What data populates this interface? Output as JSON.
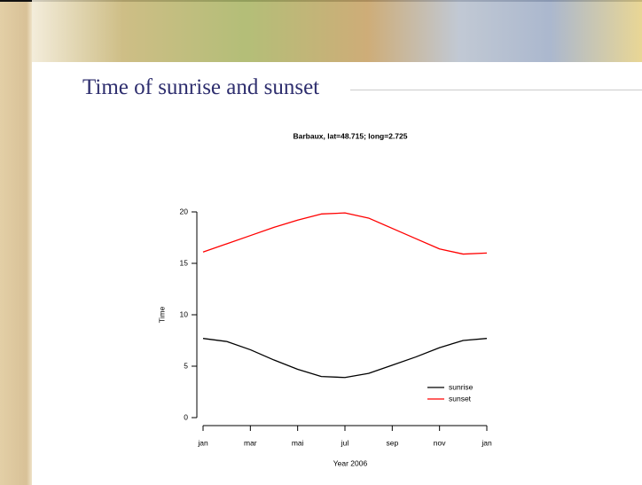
{
  "slide": {
    "title": "Time of sunrise and sunset"
  },
  "chart_data": {
    "type": "line",
    "title": "Barbaux, lat=48.715; long=2.725",
    "x_label": "Year 2006",
    "y_label": "Time",
    "x": [
      0,
      1,
      2,
      3,
      4,
      5,
      6,
      7,
      8,
      9,
      10,
      11,
      12
    ],
    "series": [
      {
        "name": "sunrise",
        "color": "#000000",
        "values": [
          7.7,
          7.4,
          6.6,
          5.6,
          4.7,
          4.0,
          3.9,
          4.3,
          5.1,
          5.9,
          6.8,
          7.5,
          7.7
        ]
      },
      {
        "name": "sunset",
        "color": "#ff0000",
        "values": [
          16.1,
          16.9,
          17.7,
          18.5,
          19.2,
          19.8,
          19.9,
          19.4,
          18.4,
          17.4,
          16.4,
          15.9,
          16.0
        ]
      }
    ],
    "xlim": [
      0,
      12
    ],
    "xticks": [
      {
        "value": 0,
        "label": "jan"
      },
      {
        "value": 2,
        "label": "mar"
      },
      {
        "value": 4,
        "label": "mai"
      },
      {
        "value": 6,
        "label": "jul"
      },
      {
        "value": 8,
        "label": "sep"
      },
      {
        "value": 10,
        "label": "nov"
      },
      {
        "value": 12,
        "label": "jan"
      }
    ],
    "ylim": [
      0,
      20
    ],
    "yticks": [
      0,
      5,
      10,
      15,
      20
    ],
    "legend": "lower right"
  }
}
